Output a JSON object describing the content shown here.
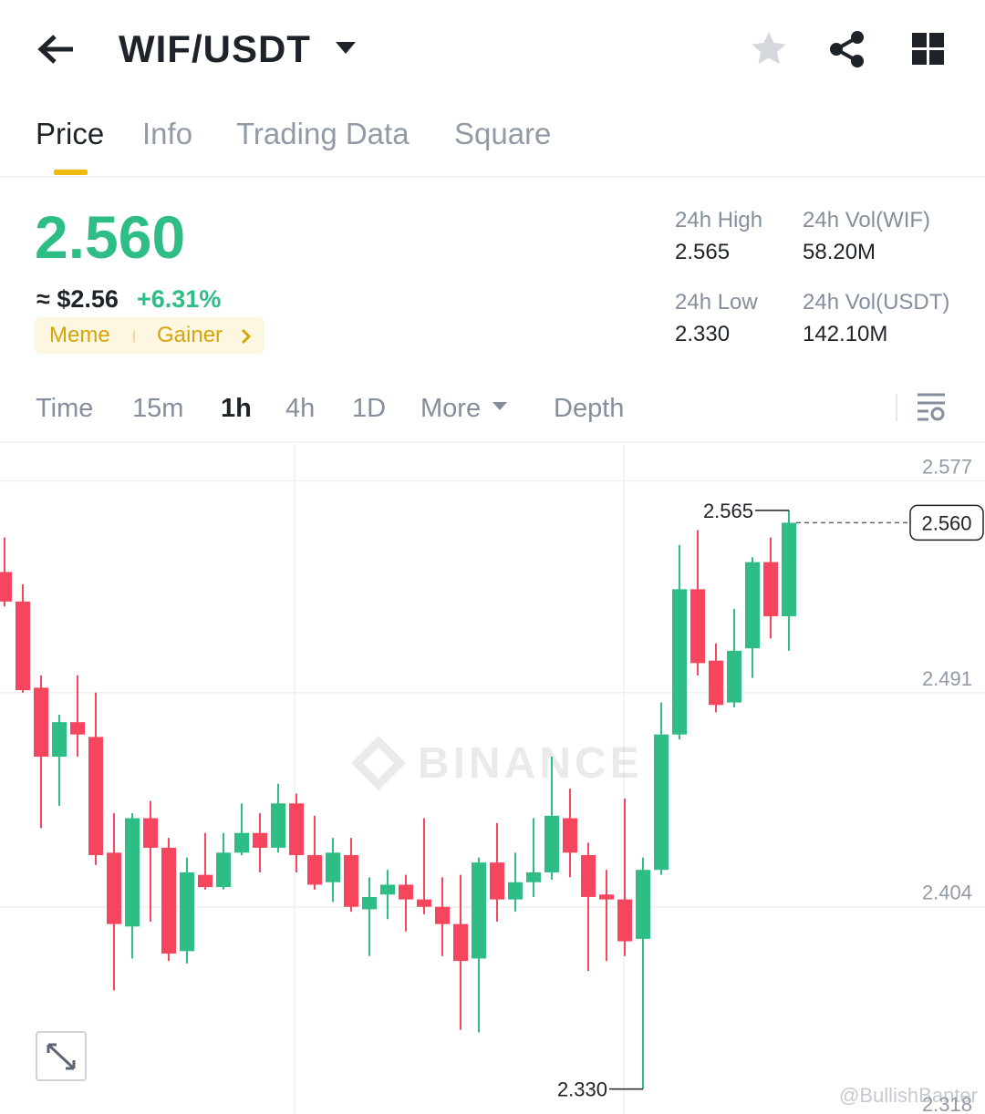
{
  "header": {
    "title": "WIF/USDT"
  },
  "tabs": [
    "Price",
    "Info",
    "Trading Data",
    "Square"
  ],
  "ticker": {
    "price": "2.560",
    "approx": "≈ $2.56",
    "change": "+6.31%",
    "tags": [
      "Meme",
      "Gainer"
    ],
    "stats": [
      {
        "label": "24h High",
        "value": "2.565"
      },
      {
        "label": "24h Vol(WIF)",
        "value": "58.20M"
      },
      {
        "label": "24h Low",
        "value": "2.330"
      },
      {
        "label": "24h Vol(USDT)",
        "value": "142.10M"
      }
    ]
  },
  "intervals": [
    "Time",
    "15m",
    "1h",
    "4h",
    "1D",
    "More",
    "Depth"
  ],
  "chart_data": {
    "type": "candlestick",
    "watermark": "BINANCE",
    "credit": "@BullishBanter",
    "up_color": "#2ebd85",
    "down_color": "#f6465d",
    "grid": true,
    "ylim": [
      2.318,
      2.592
    ],
    "yticks": [
      2.577,
      2.491,
      2.404,
      2.318
    ],
    "open": [
      2.54,
      2.528,
      2.493,
      2.465,
      2.479,
      2.473,
      2.426,
      2.396,
      2.44,
      2.428,
      2.386,
      2.417,
      2.412,
      2.426,
      2.434,
      2.428,
      2.446,
      2.425,
      2.414,
      2.425,
      2.403,
      2.409,
      2.413,
      2.407,
      2.404,
      2.397,
      2.383,
      2.422,
      2.407,
      2.414,
      2.418,
      2.44,
      2.425,
      2.409,
      2.407,
      2.391,
      2.419,
      2.474,
      2.533,
      2.504,
      2.487,
      2.509,
      2.544,
      2.522
    ],
    "high": [
      2.554,
      2.535,
      2.498,
      2.482,
      2.498,
      2.491,
      2.442,
      2.442,
      2.447,
      2.432,
      2.424,
      2.434,
      2.434,
      2.446,
      2.442,
      2.454,
      2.45,
      2.441,
      2.432,
      2.432,
      2.416,
      2.419,
      2.417,
      2.44,
      2.416,
      2.417,
      2.424,
      2.438,
      2.426,
      2.44,
      2.465,
      2.452,
      2.43,
      2.419,
      2.448,
      2.424,
      2.487,
      2.551,
      2.557,
      2.511,
      2.525,
      2.546,
      2.554,
      2.565
    ],
    "low": [
      2.526,
      2.491,
      2.436,
      2.445,
      2.465,
      2.421,
      2.37,
      2.383,
      2.398,
      2.382,
      2.381,
      2.411,
      2.411,
      2.425,
      2.418,
      2.426,
      2.418,
      2.411,
      2.406,
      2.402,
      2.384,
      2.399,
      2.394,
      2.401,
      2.384,
      2.354,
      2.353,
      2.398,
      2.402,
      2.408,
      2.415,
      2.416,
      2.378,
      2.382,
      2.384,
      2.33,
      2.417,
      2.472,
      2.498,
      2.483,
      2.485,
      2.497,
      2.513,
      2.508
    ],
    "close": [
      2.528,
      2.492,
      2.465,
      2.479,
      2.474,
      2.425,
      2.397,
      2.44,
      2.428,
      2.385,
      2.418,
      2.412,
      2.426,
      2.434,
      2.428,
      2.446,
      2.425,
      2.413,
      2.426,
      2.404,
      2.408,
      2.413,
      2.407,
      2.404,
      2.397,
      2.382,
      2.422,
      2.407,
      2.414,
      2.418,
      2.441,
      2.426,
      2.408,
      2.407,
      2.39,
      2.419,
      2.474,
      2.533,
      2.503,
      2.486,
      2.508,
      2.544,
      2.522,
      2.56
    ],
    "high_label": 2.565,
    "low_label": {
      "value": 2.33,
      "label": "2.330"
    },
    "last_price": {
      "value": 2.56,
      "label": "2.560"
    }
  }
}
